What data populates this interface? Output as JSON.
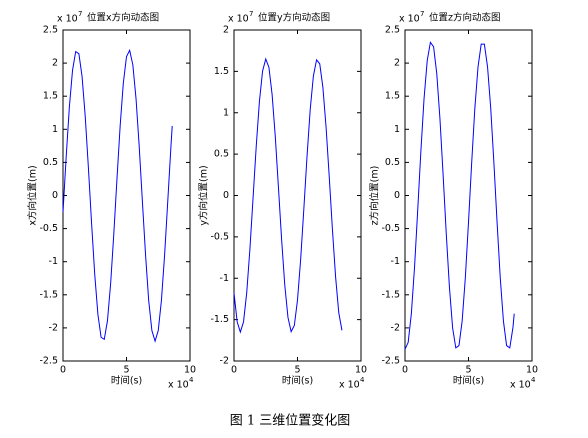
{
  "chart_data": [
    {
      "type": "line",
      "title": "位置x方向动态图",
      "xlabel": "时间(s)",
      "ylabel": "x方向位置(m)",
      "color": "#0000ff",
      "y_multiplier": {
        "base": "x 10",
        "exponent": "7"
      },
      "x_multiplier": {
        "base": "x 10",
        "exponent": "4"
      },
      "xlim": [
        0,
        10
      ],
      "xticks": [
        0,
        5,
        10
      ],
      "ylim": [
        -2.5,
        2.5
      ],
      "yticks": [
        -2.5,
        -2,
        -1.5,
        -1,
        -0.5,
        0,
        0.5,
        1,
        1.5,
        2,
        2.5
      ],
      "x": [
        0,
        0.25,
        0.5,
        0.75,
        1,
        1.25,
        1.5,
        1.75,
        2,
        2.25,
        2.5,
        2.75,
        3,
        3.25,
        3.5,
        3.75,
        4,
        4.25,
        4.5,
        4.75,
        5,
        5.25,
        5.5,
        5.75,
        6,
        6.25,
        6.5,
        6.75,
        7,
        7.25,
        7.5,
        7.75,
        8,
        8.25,
        8.5,
        8.6
      ],
      "values": [
        -0.252,
        0.583,
        1.334,
        1.891,
        2.174,
        2.142,
        1.8,
        1.196,
        0.419,
        -0.419,
        -1.195,
        -1.799,
        -2.143,
        -2.173,
        -1.892,
        -1.333,
        -0.582,
        0.252,
        1.051,
        1.698,
        2.098,
        2.193,
        1.972,
        1.463,
        0.743,
        -0.085,
        -0.897,
        -1.592,
        -2.042,
        -2.2,
        -2.039,
        -1.585,
        -0.9,
        -0.084,
        0.744,
        1.05
      ]
    },
    {
      "type": "line",
      "title": "位置y方向动态图",
      "xlabel": "时间(s)",
      "ylabel": "y方向位置(m)",
      "color": "#0000ff",
      "y_multiplier": {
        "base": "x 10",
        "exponent": "7"
      },
      "x_multiplier": {
        "base": "x 10",
        "exponent": "4"
      },
      "xlim": [
        0,
        10
      ],
      "xticks": [
        0,
        5,
        10
      ],
      "ylim": [
        -2,
        2
      ],
      "yticks": [
        -2,
        -1.5,
        -1,
        -0.5,
        0,
        0.5,
        1,
        1.5,
        2
      ],
      "x": [
        0,
        0.25,
        0.5,
        0.75,
        1,
        1.25,
        1.5,
        1.75,
        2,
        2.25,
        2.5,
        2.75,
        3,
        3.25,
        3.5,
        3.75,
        4,
        4.25,
        4.5,
        4.75,
        5,
        5.25,
        5.5,
        5.75,
        6,
        6.25,
        6.5,
        6.75,
        7,
        7.25,
        7.5,
        7.75,
        8,
        8.25,
        8.5
      ],
      "values": [
        -1.178,
        -1.527,
        -1.65,
        -1.527,
        -1.178,
        -0.653,
        -0.032,
        0.594,
        1.134,
        1.503,
        1.649,
        1.549,
        1.221,
        0.714,
        0.096,
        -0.534,
        -1.086,
        -1.474,
        -1.645,
        -1.571,
        -1.264,
        -0.769,
        -0.16,
        0.473,
        1.037,
        1.443,
        1.639,
        1.592,
        1.306,
        0.825,
        0.224,
        -0.411,
        -0.984,
        -1.417,
        -1.63
      ]
    },
    {
      "type": "line",
      "title": "位置z方向动态图",
      "xlabel": "时间(s)",
      "ylabel": "z方向位置(m)",
      "color": "#0000ff",
      "y_multiplier": {
        "base": "x 10",
        "exponent": "7"
      },
      "x_multiplier": {
        "base": "x 10",
        "exponent": "4"
      },
      "xlim": [
        0,
        10
      ],
      "xticks": [
        0,
        5,
        10
      ],
      "ylim": [
        -2.5,
        2.5
      ],
      "yticks": [
        -2.5,
        -2,
        -1.5,
        -1,
        -0.5,
        0,
        0.5,
        1,
        1.5,
        2,
        2.5
      ],
      "x": [
        0,
        0.25,
        0.5,
        0.75,
        1,
        1.25,
        1.5,
        1.75,
        2,
        2.25,
        2.5,
        2.75,
        3,
        3.25,
        3.5,
        3.75,
        4,
        4.25,
        4.5,
        4.75,
        5,
        5.25,
        5.5,
        5.75,
        6,
        6.25,
        6.5,
        6.75,
        7,
        7.25,
        7.5,
        7.75,
        8,
        8.25,
        8.5,
        8.6
      ],
      "values": [
        -2.323,
        -2.219,
        -1.785,
        -1.086,
        -0.226,
        0.668,
        1.464,
        2.038,
        2.314,
        2.248,
        1.844,
        1.165,
        0.316,
        -0.581,
        -1.39,
        -2.001,
        -2.302,
        -2.267,
        -1.896,
        -1.244,
        -0.405,
        0.493,
        1.319,
        1.943,
        2.286,
        2.286,
        1.943,
        1.319,
        0.493,
        -0.405,
        -1.244,
        -1.896,
        -2.267,
        -2.302,
        -1.995,
        -1.785
      ]
    }
  ],
  "caption": "图 1  三维位置变化图"
}
